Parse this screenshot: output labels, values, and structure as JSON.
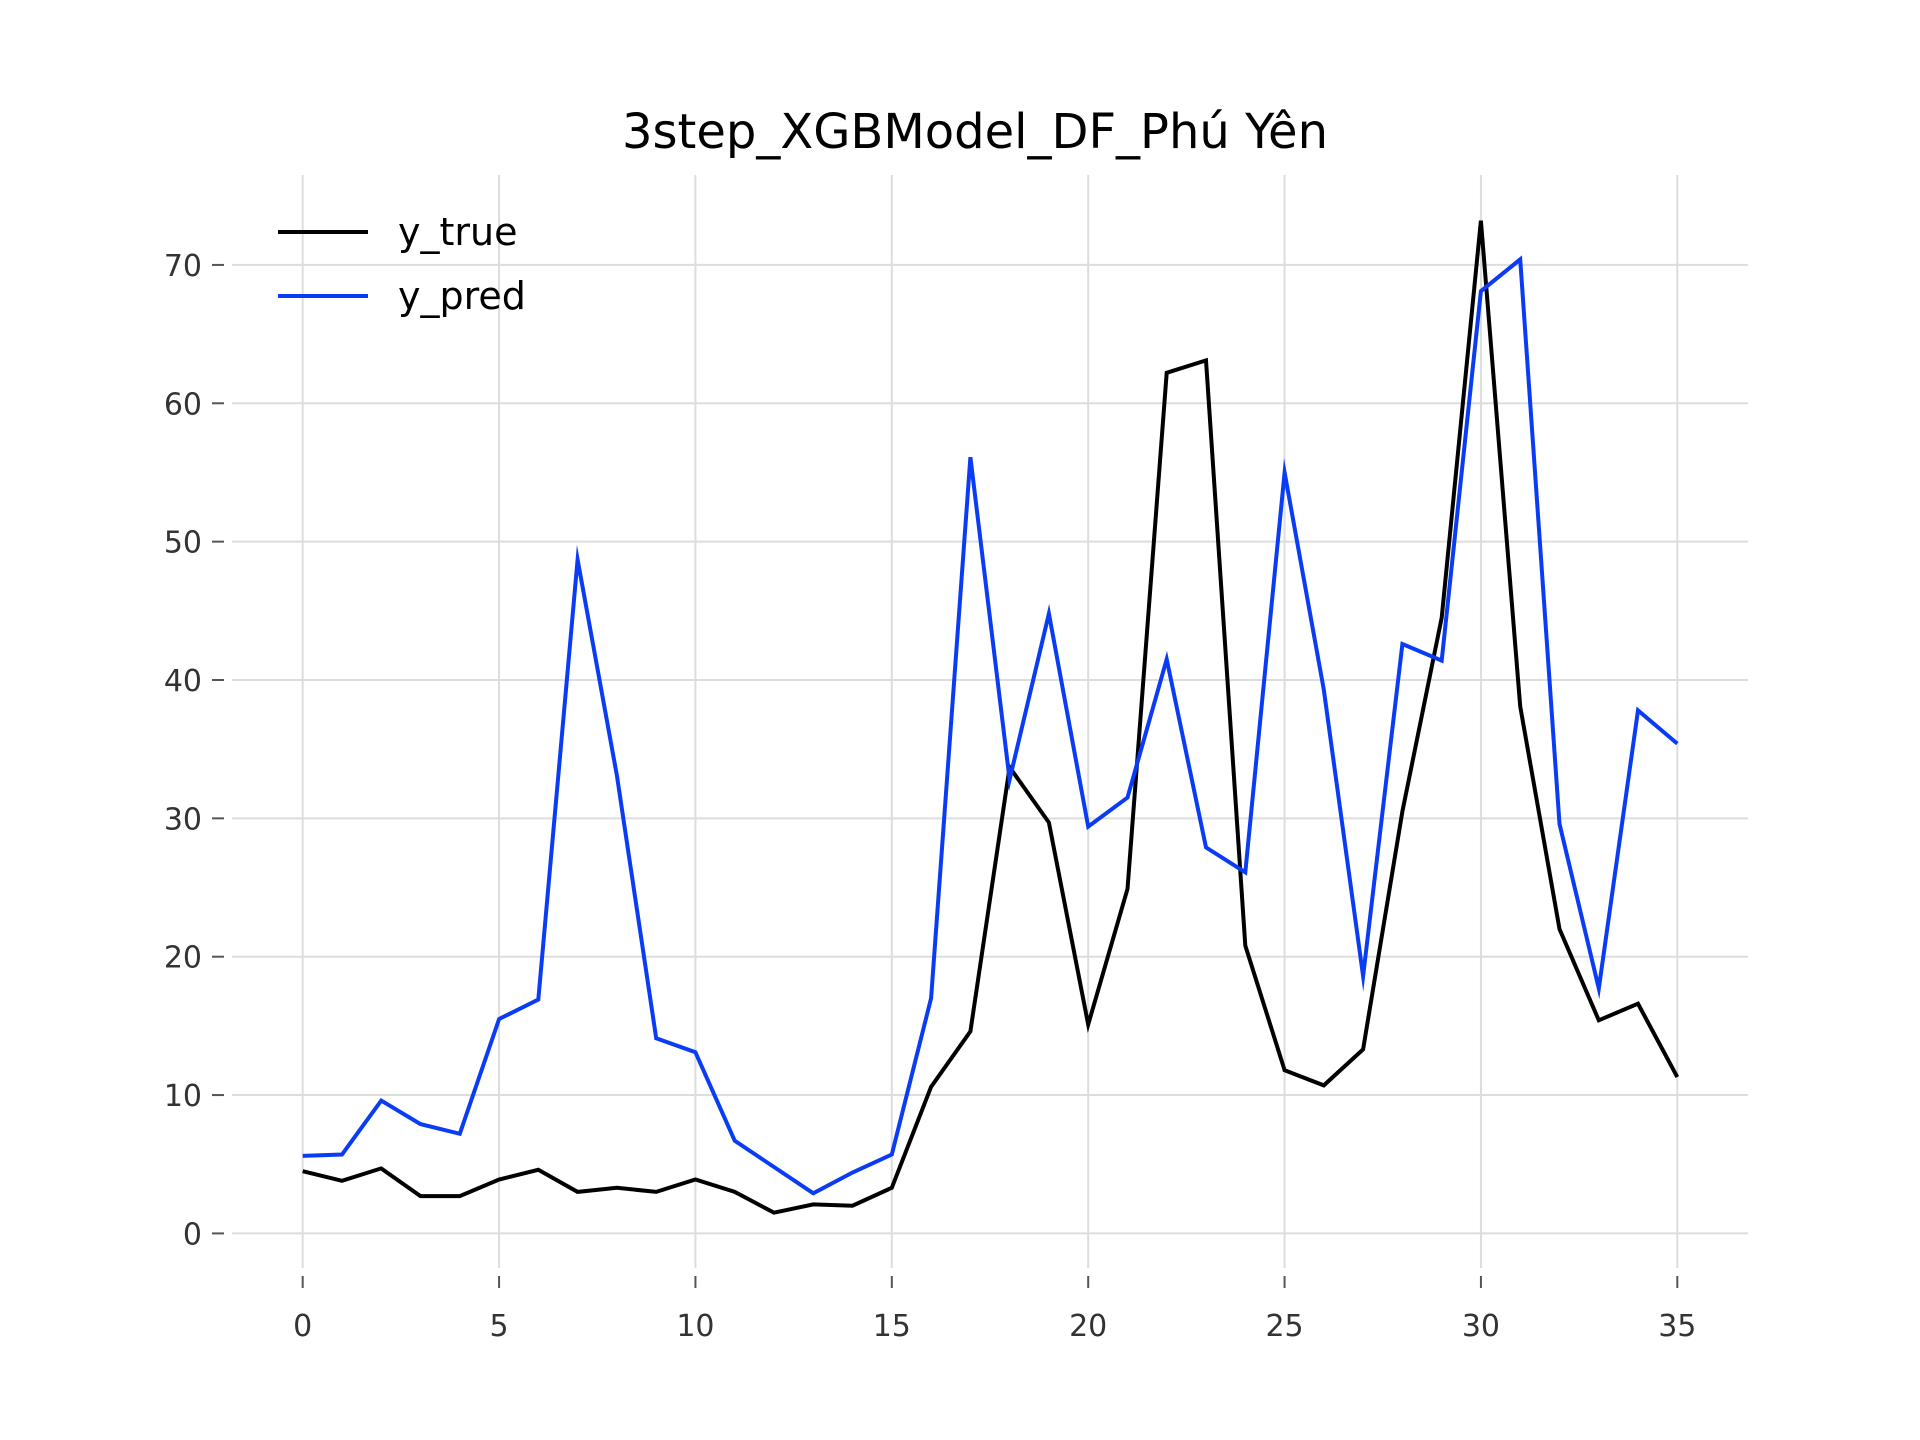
{
  "chart_data": {
    "type": "line",
    "title": "3step_XGBModel_DF_Phú Yên",
    "xlabel": "",
    "ylabel": "",
    "xlim": [
      -1.8,
      36.8
    ],
    "ylim": [
      -2.5,
      76.5
    ],
    "grid": true,
    "legend_position": "top-left",
    "x_ticks": [
      0,
      5,
      10,
      15,
      20,
      25,
      30,
      35
    ],
    "x_tick_labels": [
      "0",
      "5",
      "10",
      "15",
      "20",
      "25",
      "30",
      "35"
    ],
    "y_ticks": [
      0,
      10,
      20,
      30,
      40,
      50,
      60,
      70
    ],
    "y_tick_labels": [
      "0",
      "10",
      "20",
      "30",
      "40",
      "50",
      "60",
      "70"
    ],
    "x": [
      0,
      1,
      2,
      3,
      4,
      5,
      6,
      7,
      8,
      9,
      10,
      11,
      12,
      13,
      14,
      15,
      16,
      17,
      18,
      19,
      20,
      21,
      22,
      23,
      24,
      25,
      26,
      27,
      28,
      29,
      30,
      31,
      32,
      33,
      34,
      35
    ],
    "series": [
      {
        "name": "y_true",
        "color": "#000000",
        "values": [
          4.5,
          3.8,
          4.7,
          2.7,
          2.7,
          3.9,
          4.6,
          3.0,
          3.3,
          3.0,
          3.9,
          3.0,
          1.5,
          2.1,
          2.0,
          3.3,
          10.6,
          14.6,
          33.7,
          29.7,
          15.1,
          24.9,
          62.2,
          63.1,
          20.8,
          11.8,
          10.7,
          13.3,
          30.5,
          44.5,
          73.2,
          38.1,
          22.0,
          15.4,
          16.6,
          11.3
        ]
      },
      {
        "name": "y_pred",
        "color": "#0a3cf5",
        "values": [
          5.6,
          5.7,
          9.6,
          7.9,
          7.2,
          15.5,
          16.9,
          48.7,
          33.1,
          14.1,
          13.1,
          6.7,
          4.8,
          2.9,
          4.4,
          5.7,
          17.0,
          56.1,
          32.8,
          44.8,
          29.4,
          31.5,
          41.5,
          27.9,
          26.1,
          55.0,
          39.3,
          18.6,
          42.6,
          41.4,
          68.1,
          70.4,
          29.6,
          17.7,
          37.8,
          35.4
        ]
      }
    ]
  }
}
